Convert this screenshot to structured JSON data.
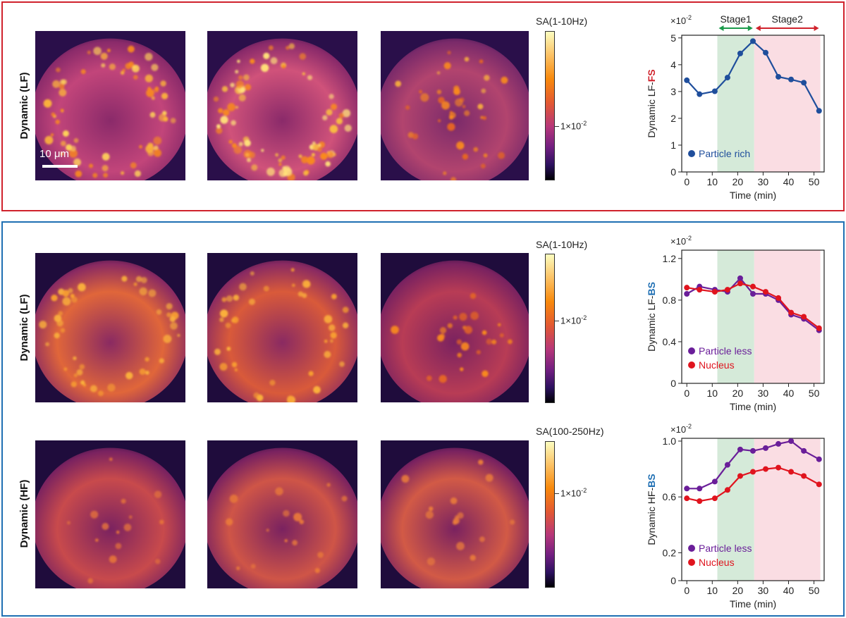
{
  "panels": {
    "top": {
      "row_label": "Dynamic (LF)",
      "colorbar": {
        "title": "SA(1-10Hz)",
        "tick_base": "1×10",
        "tick_exp": "-2"
      },
      "scalebar_label": "10 μm"
    },
    "bottom": {
      "row1": {
        "row_label": "Dynamic (LF)",
        "colorbar": {
          "title": "SA(1-10Hz)",
          "tick_base": "1×10",
          "tick_exp": "-2"
        }
      },
      "row2": {
        "row_label": "Dynamic (HF)",
        "colorbar": {
          "title": "SA(100-250Hz)",
          "tick_base": "1×10",
          "tick_exp": "-2"
        }
      }
    }
  },
  "colors": {
    "red_frame": "#d0222c",
    "blue_frame": "#1f6fb3",
    "stage1_fill": "#d5ead9",
    "stage2_fill": "#fadde3",
    "particle_rich": "#1f4e9c",
    "particle_less": "#6a1e99",
    "nucleus": "#e0141e",
    "stage1_arrow": "#1a9a4a",
    "stage2_arrow": "#d0222c"
  },
  "chart_data": [
    {
      "type": "line",
      "id": "lf-fs",
      "title": "",
      "xlabel": "Time (min)",
      "ylabel_prefix": "Dynamic LF-",
      "ylabel_highlight": "FS",
      "ylabel_highlight_color": "#d0222c",
      "multiplier_base": "×10",
      "multiplier_exp": "-2",
      "xlim": [
        -2,
        54
      ],
      "ylim": [
        0,
        5.1
      ],
      "xticks": [
        0,
        10,
        20,
        30,
        40,
        50
      ],
      "yticks": [
        0,
        1,
        2,
        3,
        4,
        5
      ],
      "ytick_labels": [
        "0",
        "1",
        "2",
        "3",
        "4",
        "5"
      ],
      "stages": [
        {
          "name": "Stage1",
          "start": 12,
          "end": 26.5,
          "fill": "#d5ead9",
          "arrow": "#1a9a4a"
        },
        {
          "name": "Stage2",
          "start": 26.5,
          "end": 52.5,
          "fill": "#fadde3",
          "arrow": "#d0222c"
        }
      ],
      "legend_position": "lower-left",
      "series": [
        {
          "name": "Particle rich",
          "color": "#1f4e9c",
          "x": [
            0,
            5,
            11,
            16,
            21,
            26,
            31,
            36,
            41,
            46,
            52
          ],
          "y": [
            3.42,
            2.9,
            3.01,
            3.52,
            4.42,
            4.88,
            4.45,
            3.55,
            3.45,
            3.33,
            2.28
          ]
        }
      ]
    },
    {
      "type": "line",
      "id": "lf-bs",
      "title": "",
      "xlabel": "Time (min)",
      "ylabel_prefix": "Dynamic LF-",
      "ylabel_highlight": "BS",
      "ylabel_highlight_color": "#1f6fb3",
      "multiplier_base": "×10",
      "multiplier_exp": "-2",
      "xlim": [
        -2,
        54
      ],
      "ylim": [
        0,
        1.28
      ],
      "xticks": [
        0,
        10,
        20,
        30,
        40,
        50
      ],
      "yticks": [
        0,
        0.4,
        0.8,
        1.2
      ],
      "ytick_labels": [
        "0",
        "0.4",
        "0.8",
        "1.2"
      ],
      "stages": [
        {
          "name": "",
          "start": 12,
          "end": 26.5,
          "fill": "#d5ead9"
        },
        {
          "name": "",
          "start": 26.5,
          "end": 52.5,
          "fill": "#fadde3"
        }
      ],
      "legend_position": "lower-left",
      "series": [
        {
          "name": "Particle less",
          "color": "#6a1e99",
          "x": [
            0,
            5,
            11,
            16,
            21,
            26,
            31,
            36,
            41,
            46,
            52
          ],
          "y": [
            0.86,
            0.93,
            0.9,
            0.88,
            1.01,
            0.86,
            0.86,
            0.8,
            0.66,
            0.62,
            0.51
          ]
        },
        {
          "name": "Nucleus",
          "color": "#e0141e",
          "x": [
            0,
            5,
            11,
            16,
            21,
            26,
            31,
            36,
            41,
            46,
            52
          ],
          "y": [
            0.92,
            0.9,
            0.88,
            0.9,
            0.96,
            0.93,
            0.88,
            0.82,
            0.68,
            0.64,
            0.53
          ]
        }
      ]
    },
    {
      "type": "line",
      "id": "hf-bs",
      "title": "",
      "xlabel": "Time (min)",
      "ylabel_prefix": "Dynamic HF-",
      "ylabel_highlight": "BS",
      "ylabel_highlight_color": "#1f6fb3",
      "multiplier_base": "×10",
      "multiplier_exp": "-2",
      "xlim": [
        -2,
        54
      ],
      "ylim": [
        0,
        1.02
      ],
      "xticks": [
        0,
        10,
        20,
        30,
        40,
        50
      ],
      "yticks": [
        0,
        0.2,
        0.6,
        1.0
      ],
      "ytick_labels": [
        "0",
        "0.2",
        "0.6",
        "1.0"
      ],
      "stages": [
        {
          "name": "",
          "start": 12,
          "end": 26.5,
          "fill": "#d5ead9"
        },
        {
          "name": "",
          "start": 26.5,
          "end": 52.5,
          "fill": "#fadde3"
        }
      ],
      "legend_position": "lower-left",
      "series": [
        {
          "name": "Particle less",
          "color": "#6a1e99",
          "x": [
            0,
            5,
            11,
            16,
            21,
            26,
            31,
            36,
            41,
            46,
            52
          ],
          "y": [
            0.66,
            0.66,
            0.71,
            0.83,
            0.94,
            0.93,
            0.95,
            0.98,
            1.0,
            0.93,
            0.87
          ]
        },
        {
          "name": "Nucleus",
          "color": "#e0141e",
          "x": [
            0,
            5,
            11,
            16,
            21,
            26,
            31,
            36,
            41,
            46,
            52
          ],
          "y": [
            0.59,
            0.57,
            0.59,
            0.65,
            0.75,
            0.78,
            0.8,
            0.81,
            0.78,
            0.75,
            0.69
          ]
        }
      ]
    }
  ]
}
